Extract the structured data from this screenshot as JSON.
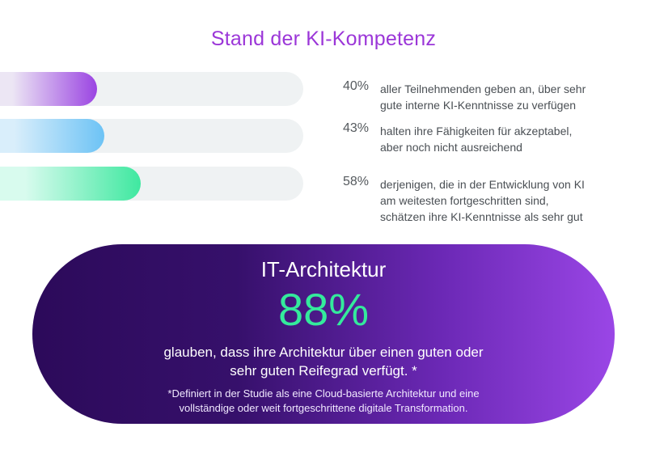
{
  "title": "Stand der KI-Kompetenz",
  "colors": {
    "title": "#9b36d8",
    "track": "#eff2f3",
    "bar_1": [
      "#ece6f4",
      "#9b45e2"
    ],
    "bar_2": [
      "#d9eefb",
      "#6dc3f5"
    ],
    "bar_3": [
      "#d8fbee",
      "#3fe8a0"
    ],
    "pill": [
      "#2c0a5a",
      "#9a46e6"
    ],
    "highlight": "#34ea9c"
  },
  "chart_data": {
    "type": "bar",
    "orientation": "horizontal",
    "title": "Stand der KI-Kompetenz",
    "unit": "%",
    "xlim": [
      0,
      100
    ],
    "categories": [
      "aller Teilnehmenden geben an, über sehr gute interne KI-Kenntnisse zu verfügen",
      "halten ihre Fähigkeiten für akzeptabel, aber noch nicht ausreichend",
      "derjenigen, die in der Entwicklung von KI am weitesten fortgeschritten sind, schätzen ihre KI-Kenntnisse als sehr gut"
    ],
    "values": [
      40,
      43,
      58
    ],
    "labels": [
      "40%",
      "43%",
      "58%"
    ]
  },
  "stats": [
    {
      "pct": "40%",
      "lines": [
        "aller Teilnehmenden geben an, über sehr",
        "gute interne KI-Kenntnisse zu verfügen"
      ]
    },
    {
      "pct": "43%",
      "lines": [
        "halten ihre Fähigkeiten für akzeptabel,",
        "aber noch nicht ausreichend"
      ]
    },
    {
      "pct": "58%",
      "lines": [
        "derjenigen, die in der Entwicklung von KI",
        "am weitesten fortgeschritten sind,",
        "schätzen ihre KI-Kenntnisse als sehr gut"
      ]
    }
  ],
  "highlight": {
    "title": "IT-Architektur",
    "value": "88%",
    "desc_lines": [
      "glauben, dass ihre Architektur über einen guten oder",
      "sehr guten Reifegrad verfügt. *"
    ],
    "footnote_lines": [
      "*Definiert in der Studie als eine Cloud-basierte Architektur und eine",
      "vollständige oder weit fortgeschrittene digitale Transformation."
    ]
  }
}
